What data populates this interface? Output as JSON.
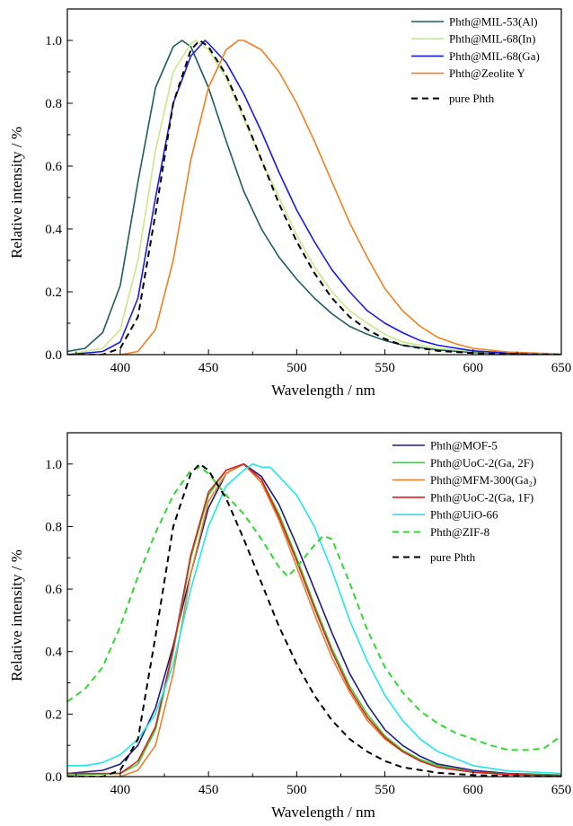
{
  "chart_data": [
    {
      "type": "line",
      "xlabel": "Wavelength / nm",
      "ylabel": "Relative intensity / %",
      "xlim": [
        370,
        650
      ],
      "ylim": [
        0,
        1.1
      ],
      "xticks": [
        400,
        450,
        500,
        550,
        600,
        650
      ],
      "yticks": [
        0.0,
        0.2,
        0.4,
        0.6,
        0.8,
        1.0
      ],
      "ytick_labels": [
        "0.0",
        "0.2",
        "0.4",
        "0.6",
        "0.8",
        "1.0"
      ],
      "grid": false,
      "legend": "top-right",
      "series": [
        {
          "name": "Phth@MIL-53(Al)",
          "color": "#1f5c5a",
          "dash": "solid",
          "x": [
            370,
            380,
            390,
            400,
            410,
            420,
            430,
            435,
            440,
            450,
            460,
            470,
            480,
            490,
            500,
            510,
            520,
            530,
            540,
            550,
            560,
            580,
            600,
            620,
            650
          ],
          "y": [
            0.01,
            0.02,
            0.07,
            0.22,
            0.55,
            0.85,
            0.98,
            1.0,
            0.98,
            0.85,
            0.68,
            0.52,
            0.4,
            0.31,
            0.24,
            0.18,
            0.13,
            0.09,
            0.065,
            0.045,
            0.03,
            0.015,
            0.007,
            0.003,
            0.001
          ]
        },
        {
          "name": "Phth@MIL-68(In)",
          "color": "#c8e88a",
          "dash": "solid",
          "x": [
            370,
            390,
            400,
            410,
            420,
            430,
            440,
            443,
            450,
            460,
            470,
            480,
            490,
            500,
            510,
            520,
            530,
            540,
            550,
            560,
            580,
            600,
            620,
            650
          ],
          "y": [
            0.0,
            0.02,
            0.08,
            0.3,
            0.65,
            0.9,
            0.99,
            1.0,
            0.97,
            0.88,
            0.75,
            0.62,
            0.5,
            0.38,
            0.28,
            0.2,
            0.14,
            0.1,
            0.065,
            0.04,
            0.02,
            0.01,
            0.004,
            0.001
          ]
        },
        {
          "name": "Phth@MIL-68(Ga)",
          "color": "#1a1ae6",
          "dash": "solid",
          "x": [
            370,
            390,
            400,
            410,
            420,
            430,
            440,
            448,
            450,
            460,
            470,
            480,
            490,
            500,
            510,
            520,
            530,
            540,
            550,
            560,
            570,
            580,
            600,
            620,
            650
          ],
          "y": [
            0.0,
            0.01,
            0.04,
            0.18,
            0.5,
            0.8,
            0.95,
            1.0,
            0.99,
            0.93,
            0.83,
            0.71,
            0.58,
            0.46,
            0.36,
            0.27,
            0.2,
            0.14,
            0.1,
            0.07,
            0.045,
            0.03,
            0.012,
            0.005,
            0.001
          ]
        },
        {
          "name": "Phth@Zeolite Y",
          "color": "#f08020",
          "dash": "solid",
          "x": [
            370,
            400,
            410,
            420,
            430,
            440,
            450,
            460,
            467,
            470,
            480,
            490,
            500,
            510,
            520,
            530,
            540,
            550,
            560,
            570,
            580,
            590,
            600,
            620,
            650
          ],
          "y": [
            0.0,
            0.0,
            0.01,
            0.08,
            0.3,
            0.62,
            0.85,
            0.97,
            1.0,
            1.0,
            0.97,
            0.9,
            0.8,
            0.68,
            0.55,
            0.42,
            0.31,
            0.21,
            0.14,
            0.09,
            0.055,
            0.035,
            0.02,
            0.008,
            0.002
          ]
        },
        {
          "name": "pure Phth",
          "color": "#000000",
          "dash": "dashed",
          "x": [
            370,
            390,
            400,
            410,
            420,
            430,
            440,
            445,
            450,
            460,
            470,
            480,
            490,
            500,
            510,
            520,
            530,
            540,
            550,
            560,
            580,
            600,
            620,
            650
          ],
          "y": [
            0.0,
            0.0,
            0.02,
            0.12,
            0.45,
            0.8,
            0.97,
            1.0,
            0.98,
            0.89,
            0.76,
            0.62,
            0.48,
            0.36,
            0.26,
            0.18,
            0.12,
            0.08,
            0.05,
            0.03,
            0.012,
            0.005,
            0.002,
            0.0
          ]
        }
      ]
    },
    {
      "type": "line",
      "xlabel": "Wavelength / nm",
      "ylabel": "Relative intensity / %",
      "xlim": [
        370,
        650
      ],
      "ylim": [
        0,
        1.1
      ],
      "xticks": [
        400,
        450,
        500,
        550,
        600,
        650
      ],
      "yticks": [
        0.0,
        0.2,
        0.4,
        0.6,
        0.8,
        1.0
      ],
      "ytick_labels": [
        "0.0",
        "0.2",
        "0.4",
        "0.6",
        "0.8",
        "1.0"
      ],
      "grid": false,
      "legend": "top-right",
      "series": [
        {
          "name": "Phth@MOF-5",
          "color": "#1c1c80",
          "dash": "solid",
          "x": [
            370,
            390,
            400,
            410,
            420,
            430,
            440,
            450,
            460,
            470,
            480,
            490,
            500,
            510,
            520,
            530,
            540,
            550,
            560,
            570,
            580,
            600,
            620,
            650
          ],
          "y": [
            0.01,
            0.02,
            0.04,
            0.1,
            0.22,
            0.42,
            0.65,
            0.86,
            0.97,
            1.0,
            0.96,
            0.87,
            0.74,
            0.6,
            0.46,
            0.33,
            0.23,
            0.15,
            0.1,
            0.065,
            0.04,
            0.02,
            0.01,
            0.005
          ]
        },
        {
          "name": "Phth@UoC-2(Ga, 2F)",
          "color": "#33d633",
          "dash": "solid",
          "x": [
            370,
            400,
            410,
            420,
            430,
            440,
            450,
            460,
            470,
            480,
            490,
            500,
            510,
            520,
            530,
            540,
            550,
            560,
            570,
            580,
            600,
            620,
            650
          ],
          "y": [
            0.005,
            0.01,
            0.04,
            0.15,
            0.4,
            0.7,
            0.9,
            0.98,
            1.0,
            0.95,
            0.84,
            0.7,
            0.55,
            0.41,
            0.29,
            0.2,
            0.13,
            0.085,
            0.055,
            0.035,
            0.015,
            0.008,
            0.004
          ]
        },
        {
          "name": "Phth@MFM-300(Ga₂)",
          "color": "#e8822e",
          "dash": "solid",
          "x": [
            370,
            400,
            410,
            420,
            430,
            440,
            450,
            460,
            470,
            480,
            490,
            500,
            510,
            520,
            530,
            540,
            550,
            560,
            570,
            580,
            600,
            620,
            650
          ],
          "y": [
            0.0,
            0.0,
            0.02,
            0.1,
            0.33,
            0.65,
            0.88,
            0.97,
            1.0,
            0.94,
            0.82,
            0.67,
            0.52,
            0.38,
            0.27,
            0.18,
            0.12,
            0.08,
            0.05,
            0.03,
            0.014,
            0.006,
            0.003
          ]
        },
        {
          "name": "Phth@UoC-2(Ga, 1F)",
          "color": "#e02020",
          "dash": "solid",
          "x": [
            370,
            400,
            410,
            420,
            430,
            440,
            450,
            460,
            470,
            480,
            490,
            500,
            510,
            520,
            530,
            540,
            550,
            560,
            570,
            580,
            600,
            620,
            650
          ],
          "y": [
            0.01,
            0.01,
            0.05,
            0.16,
            0.41,
            0.71,
            0.91,
            0.98,
            1.0,
            0.95,
            0.83,
            0.69,
            0.54,
            0.4,
            0.28,
            0.19,
            0.125,
            0.08,
            0.05,
            0.03,
            0.014,
            0.007,
            0.003
          ]
        },
        {
          "name": "Phth@UiO-66",
          "color": "#20e8e8",
          "dash": "solid",
          "x": [
            370,
            380,
            390,
            400,
            410,
            420,
            430,
            440,
            450,
            460,
            470,
            475,
            480,
            485,
            490,
            500,
            510,
            520,
            530,
            540,
            550,
            560,
            570,
            580,
            600,
            620,
            650
          ],
          "y": [
            0.035,
            0.035,
            0.045,
            0.07,
            0.12,
            0.2,
            0.36,
            0.6,
            0.8,
            0.93,
            0.98,
            1.0,
            0.99,
            0.99,
            0.96,
            0.9,
            0.8,
            0.66,
            0.5,
            0.37,
            0.26,
            0.18,
            0.12,
            0.08,
            0.035,
            0.018,
            0.01
          ]
        },
        {
          "name": "Phth@ZIF-8",
          "color": "#33d633",
          "dash": "dashed",
          "x": [
            370,
            380,
            390,
            400,
            410,
            420,
            430,
            440,
            445,
            450,
            460,
            470,
            480,
            490,
            495,
            500,
            510,
            515,
            520,
            530,
            540,
            550,
            560,
            570,
            580,
            590,
            600,
            610,
            620,
            630,
            640,
            650
          ],
          "y": [
            0.24,
            0.28,
            0.35,
            0.48,
            0.64,
            0.78,
            0.9,
            0.98,
            0.99,
            0.97,
            0.9,
            0.84,
            0.76,
            0.67,
            0.64,
            0.67,
            0.74,
            0.77,
            0.76,
            0.62,
            0.47,
            0.35,
            0.27,
            0.21,
            0.17,
            0.14,
            0.12,
            0.1,
            0.085,
            0.085,
            0.09,
            0.13
          ]
        },
        {
          "name": "pure Phth",
          "color": "#000000",
          "dash": "dashed",
          "x": [
            370,
            390,
            400,
            410,
            420,
            430,
            440,
            445,
            450,
            460,
            470,
            480,
            490,
            500,
            510,
            520,
            530,
            540,
            550,
            560,
            580,
            600,
            620,
            650
          ],
          "y": [
            0.0,
            0.0,
            0.02,
            0.12,
            0.45,
            0.8,
            0.97,
            1.0,
            0.98,
            0.89,
            0.76,
            0.62,
            0.48,
            0.36,
            0.26,
            0.18,
            0.12,
            0.08,
            0.05,
            0.03,
            0.012,
            0.005,
            0.002,
            0.0
          ]
        }
      ]
    }
  ]
}
